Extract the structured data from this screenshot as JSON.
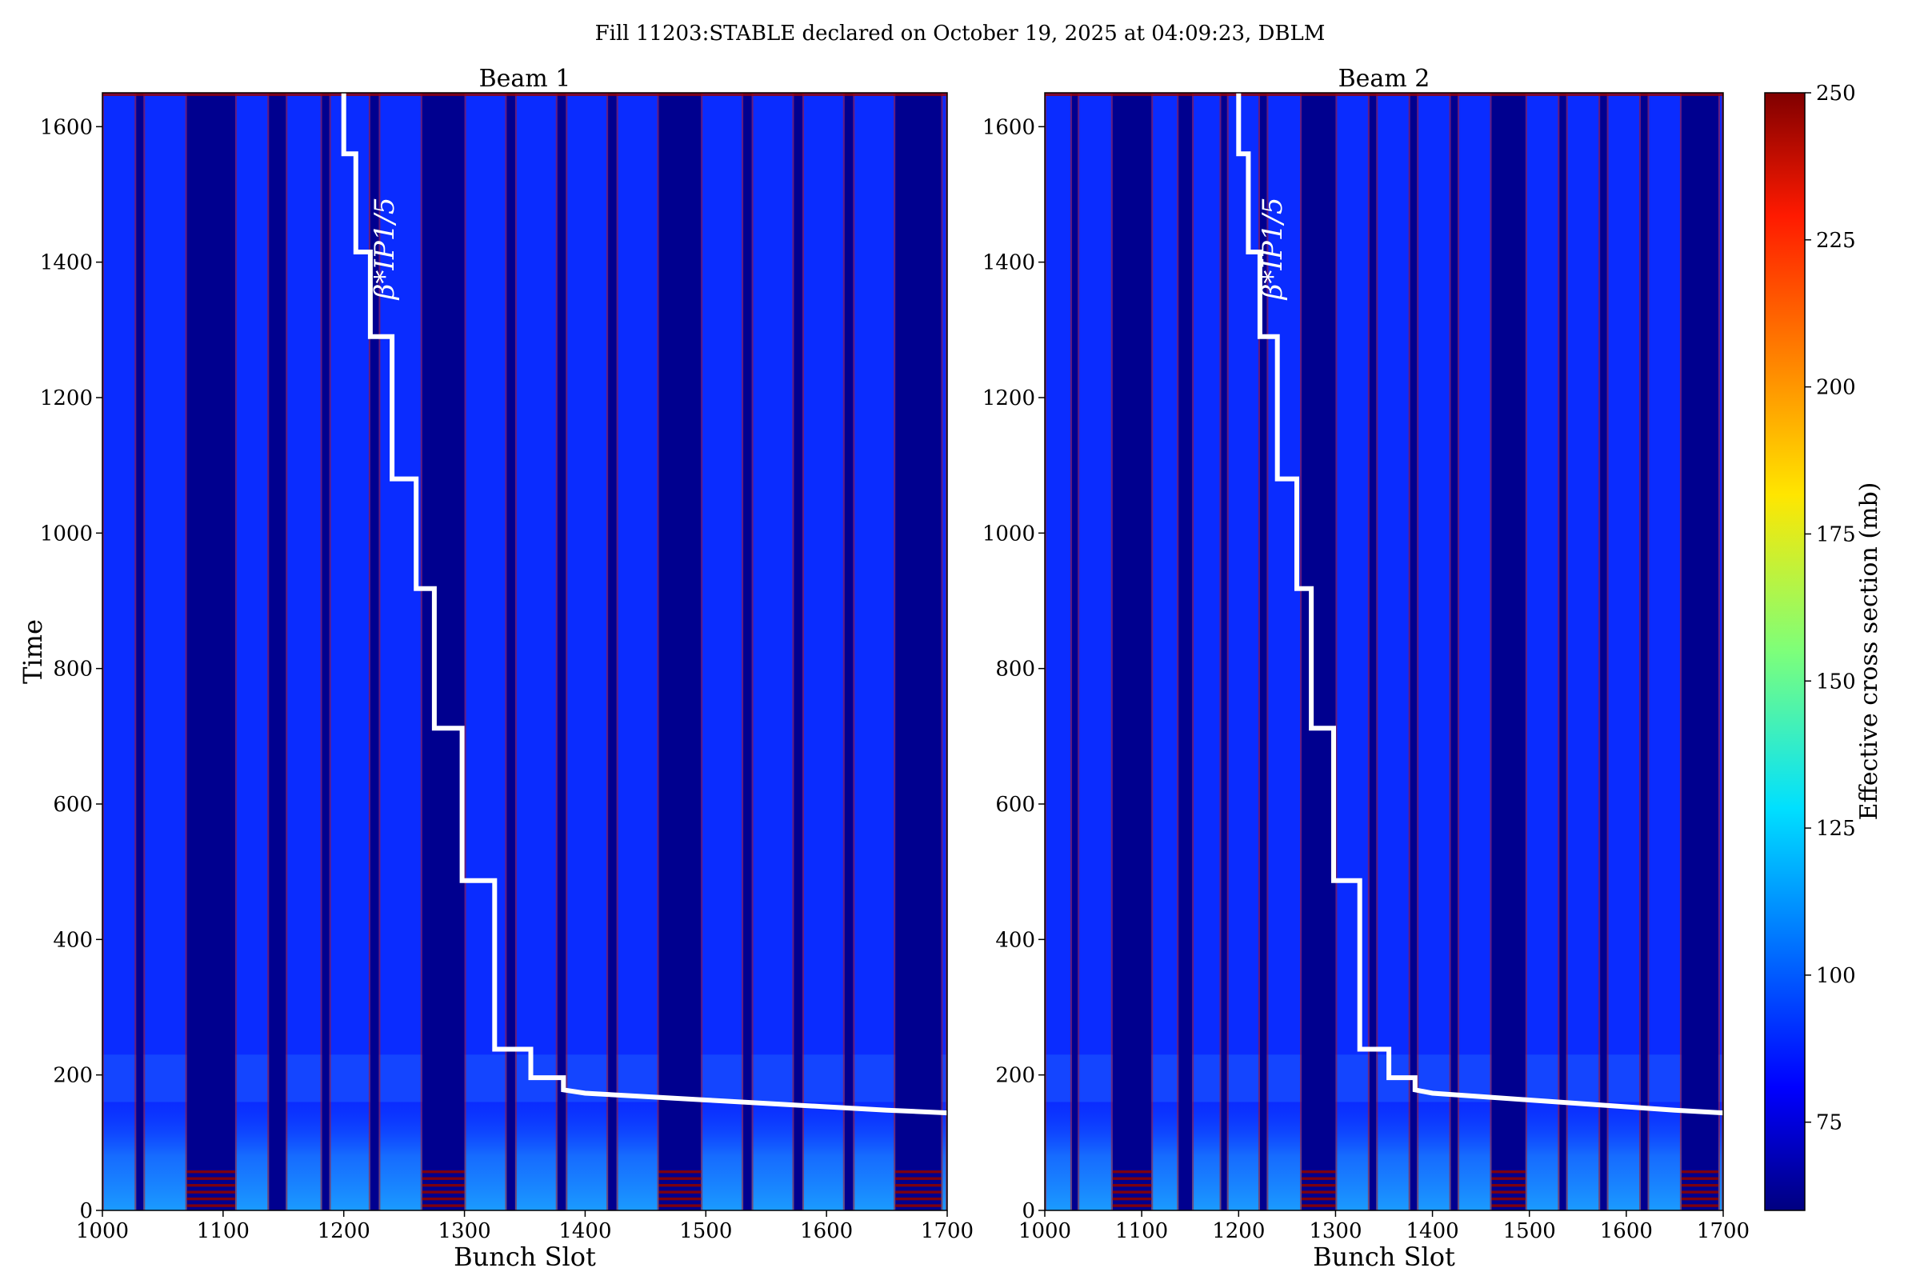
{
  "figure": {
    "suptitle": "Fill 11203:STABLE declared on October 19, 2025 at 04:09:23, DBLM"
  },
  "colorbar": {
    "label": "Effective cross section (mb)",
    "ticks": [
      75,
      100,
      125,
      150,
      175,
      200,
      225,
      250
    ],
    "range": [
      60,
      250
    ],
    "colormap": "jet"
  },
  "chart_data": [
    {
      "type": "heatmap",
      "title": "Beam 1",
      "xlabel": "Bunch Slot",
      "ylabel": "Time",
      "xlim": [
        1000,
        1700
      ],
      "ylim": [
        0,
        1650
      ],
      "xticks": [
        1000,
        1100,
        1200,
        1300,
        1400,
        1500,
        1600,
        1700
      ],
      "yticks": [
        0,
        200,
        400,
        600,
        800,
        1000,
        1200,
        1400,
        1600
      ],
      "filled_bunch_trains": [
        [
          1000,
          1028
        ],
        [
          1034,
          1070
        ],
        [
          1110,
          1138
        ],
        [
          1152,
          1182
        ],
        [
          1188,
          1222
        ],
        [
          1229,
          1265
        ],
        [
          1300,
          1335
        ],
        [
          1342,
          1377
        ],
        [
          1384,
          1419
        ],
        [
          1426,
          1461
        ],
        [
          1496,
          1531
        ],
        [
          1538,
          1573
        ],
        [
          1580,
          1615
        ],
        [
          1622,
          1657
        ],
        [
          1695,
          1700
        ]
      ],
      "empty_gaps": [
        [
          1070,
          1110
        ],
        [
          1265,
          1300
        ],
        [
          1461,
          1496
        ],
        [
          1657,
          1695
        ]
      ],
      "background_cross_section_mb": 82,
      "high_cross_section_rows_time": [
        5,
        15,
        25,
        35,
        45,
        55
      ],
      "beta_star_annotation": "β*IP1/5",
      "beta_star_curve": {
        "x": [
          1200,
          1200,
          1210,
          1210,
          1222,
          1222,
          1240,
          1240,
          1260,
          1260,
          1275,
          1275,
          1298,
          1298,
          1325,
          1325,
          1355,
          1355,
          1382,
          1382,
          1400,
          1450,
          1500,
          1550,
          1600,
          1650,
          1700
        ],
        "y": [
          1650,
          1560,
          1560,
          1415,
          1415,
          1290,
          1290,
          1080,
          1080,
          918,
          918,
          712,
          712,
          487,
          487,
          238,
          238,
          196,
          196,
          178,
          173,
          168,
          163,
          158,
          153,
          148,
          144
        ]
      }
    },
    {
      "type": "heatmap",
      "title": "Beam 2",
      "xlabel": "Bunch Slot",
      "ylabel": "",
      "xlim": [
        1000,
        1700
      ],
      "ylim": [
        0,
        1650
      ],
      "xticks": [
        1000,
        1100,
        1200,
        1300,
        1400,
        1500,
        1600,
        1700
      ],
      "yticks": [
        0,
        200,
        400,
        600,
        800,
        1000,
        1200,
        1400,
        1600
      ],
      "filled_bunch_trains": [
        [
          1000,
          1028
        ],
        [
          1034,
          1070
        ],
        [
          1110,
          1138
        ],
        [
          1152,
          1182
        ],
        [
          1188,
          1222
        ],
        [
          1229,
          1265
        ],
        [
          1300,
          1335
        ],
        [
          1342,
          1377
        ],
        [
          1384,
          1419
        ],
        [
          1426,
          1461
        ],
        [
          1496,
          1531
        ],
        [
          1538,
          1573
        ],
        [
          1580,
          1615
        ],
        [
          1622,
          1657
        ],
        [
          1695,
          1700
        ]
      ],
      "empty_gaps": [
        [
          1070,
          1110
        ],
        [
          1265,
          1300
        ],
        [
          1461,
          1496
        ],
        [
          1657,
          1695
        ]
      ],
      "background_cross_section_mb": 82,
      "high_cross_section_rows_time": [
        5,
        15,
        25,
        35,
        45,
        55
      ],
      "beta_star_annotation": "β*IP1/5",
      "beta_star_curve": {
        "x": [
          1200,
          1200,
          1210,
          1210,
          1222,
          1222,
          1240,
          1240,
          1260,
          1260,
          1275,
          1275,
          1298,
          1298,
          1325,
          1325,
          1355,
          1355,
          1382,
          1382,
          1400,
          1450,
          1500,
          1550,
          1600,
          1650,
          1700
        ],
        "y": [
          1650,
          1560,
          1560,
          1415,
          1415,
          1290,
          1290,
          1080,
          1080,
          918,
          918,
          712,
          712,
          487,
          487,
          238,
          238,
          196,
          196,
          178,
          173,
          168,
          163,
          158,
          153,
          148,
          144
        ]
      }
    }
  ]
}
